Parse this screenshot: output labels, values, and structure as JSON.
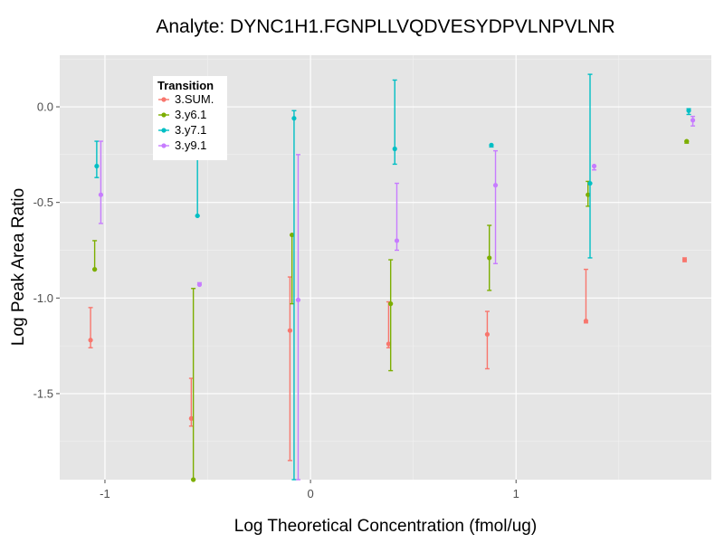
{
  "chart_data": {
    "type": "scatter",
    "title": "Analyte: DYNC1H1.FGNPLLVQDVESYDPVLNPVLNR",
    "xlabel": "Log Theoretical Concentration (fmol/ug)",
    "ylabel": "Log Peak Area Ratio",
    "xlim": [
      -1.22,
      1.95
    ],
    "ylim": [
      -1.95,
      0.27
    ],
    "x_ticks": [
      -1,
      0,
      1
    ],
    "x_tick_labels": [
      "-1",
      "0",
      "1"
    ],
    "y_ticks": [
      0.0,
      -0.5,
      -1.0,
      -1.5
    ],
    "y_tick_labels": [
      "0.0",
      "-0.5",
      "-1.0",
      "-1.5"
    ],
    "grid": true,
    "legend": {
      "title": "Transition",
      "position": "top-left-inside"
    },
    "series": [
      {
        "name": "3.SUM.",
        "color": "#F8766D",
        "points": [
          {
            "x": -1.07,
            "y": -1.22,
            "ymin": -1.26,
            "ymax": -1.05
          },
          {
            "x": -0.58,
            "y": -1.63,
            "ymin": -1.67,
            "ymin_note": "",
            "ymax": -1.42
          },
          {
            "x": -0.1,
            "y": -1.17,
            "ymin": -1.85,
            "ymax": -0.89
          },
          {
            "x": 0.38,
            "y": -1.24,
            "ymin": -1.26,
            "ymax": -1.02
          },
          {
            "x": 0.86,
            "y": -1.19,
            "ymin": -1.37,
            "ymax": -1.07
          },
          {
            "x": 1.34,
            "y": -1.12,
            "ymin": -1.13,
            "ymax": -0.85
          },
          {
            "x": 1.82,
            "y": -0.8,
            "ymin": -0.81,
            "ymax": -0.79
          }
        ]
      },
      {
        "name": "3.y6.1",
        "color": "#7CAE00",
        "points": [
          {
            "x": -1.05,
            "y": -0.85,
            "ymin": -0.85,
            "ymax": -0.7
          },
          {
            "x": -0.57,
            "y": -1.95,
            "ymin": -1.95,
            "ymax": -0.95
          },
          {
            "x": -0.09,
            "y": -0.67,
            "ymin": -1.03,
            "ymax": -0.67
          },
          {
            "x": 0.39,
            "y": -1.03,
            "ymin": -1.38,
            "ymax": -0.8
          },
          {
            "x": 0.87,
            "y": -0.79,
            "ymin": -0.96,
            "ymax": -0.62
          },
          {
            "x": 1.35,
            "y": -0.46,
            "ymin": -0.52,
            "ymax": -0.39
          },
          {
            "x": 1.83,
            "y": -0.18,
            "ymin": -0.19,
            "ymax": -0.18
          }
        ]
      },
      {
        "name": "3.y7.1",
        "color": "#00BFC4",
        "points": [
          {
            "x": -1.04,
            "y": -0.31,
            "ymin": -0.37,
            "ymax": -0.18
          },
          {
            "x": -0.55,
            "y": -0.57,
            "ymin": -0.57,
            "ymax": -0.17
          },
          {
            "x": -0.08,
            "y": -0.06,
            "ymin": -1.95,
            "ymax": -0.02
          },
          {
            "x": 0.41,
            "y": -0.22,
            "ymin": -0.3,
            "ymax": 0.14
          },
          {
            "x": 0.88,
            "y": -0.2,
            "ymin": -0.21,
            "ymax": -0.2
          },
          {
            "x": 1.36,
            "y": -0.4,
            "ymin": -0.79,
            "ymax": 0.17
          },
          {
            "x": 1.84,
            "y": -0.02,
            "ymin": -0.04,
            "ymax": -0.01
          }
        ]
      },
      {
        "name": "3.y9.1",
        "color": "#C77CFF",
        "points": [
          {
            "x": -1.02,
            "y": -0.46,
            "ymin": -0.61,
            "ymax": -0.18
          },
          {
            "x": -0.54,
            "y": -0.93,
            "ymin": -0.93,
            "ymax": -0.92
          },
          {
            "x": -0.06,
            "y": -1.01,
            "ymin": -1.95,
            "ymax": -0.25
          },
          {
            "x": 0.42,
            "y": -0.7,
            "ymin": -0.75,
            "ymax": -0.4
          },
          {
            "x": 0.9,
            "y": -0.41,
            "ymin": -0.82,
            "ymax": -0.23
          },
          {
            "x": 1.38,
            "y": -0.31,
            "ymin": -0.33,
            "ymax": -0.31
          },
          {
            "x": 1.86,
            "y": -0.07,
            "ymin": -0.1,
            "ymax": -0.05
          }
        ]
      }
    ]
  }
}
